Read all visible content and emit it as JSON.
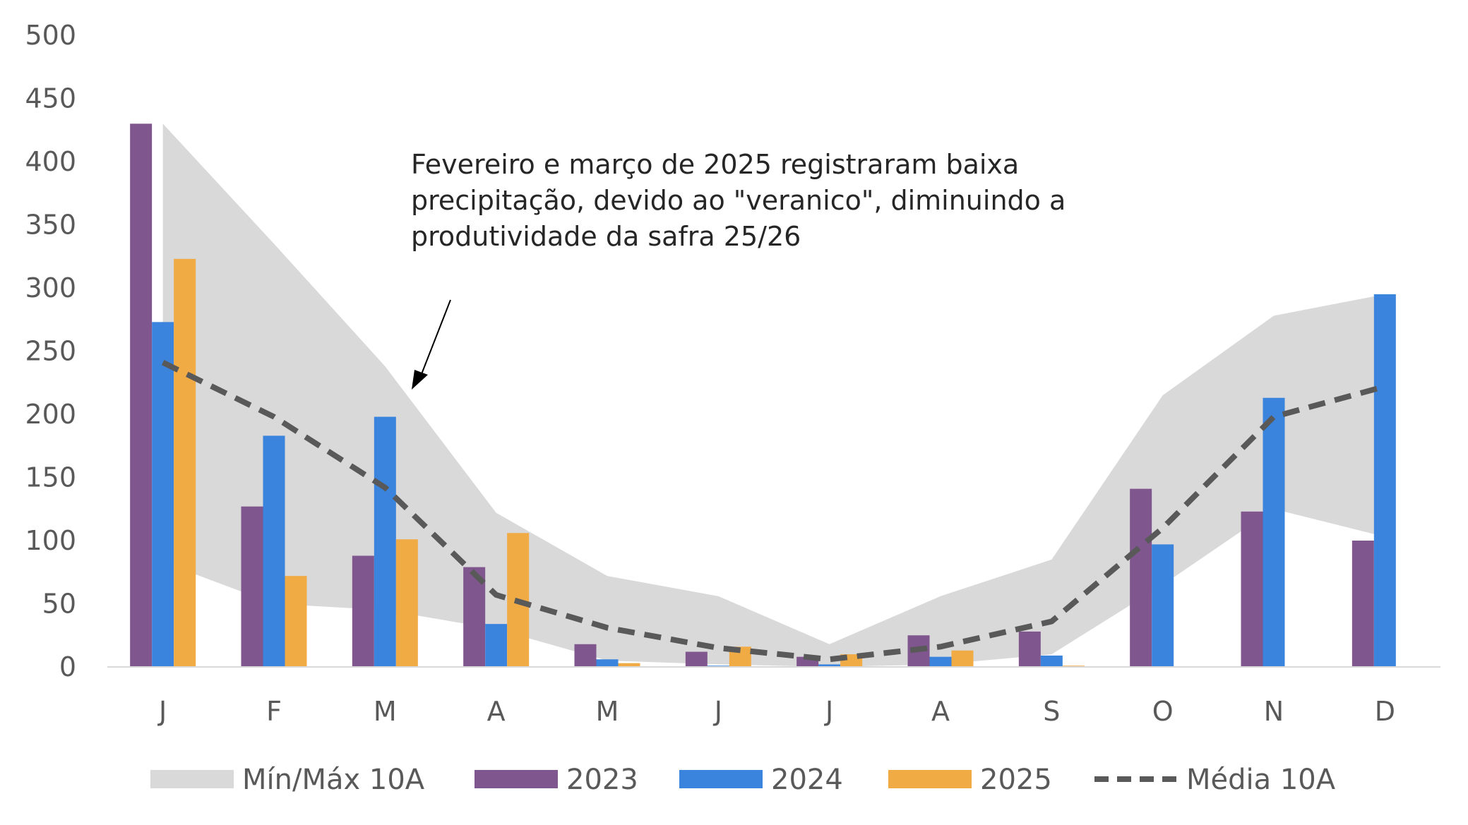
{
  "chart_data": {
    "type": "bar",
    "categories": [
      "J",
      "F",
      "M",
      "A",
      "M",
      "J",
      "J",
      "A",
      "S",
      "O",
      "N",
      "D"
    ],
    "ylim": [
      0,
      500
    ],
    "yticks": [
      0,
      50,
      100,
      150,
      200,
      250,
      300,
      350,
      400,
      450,
      500
    ],
    "grid": false,
    "legend_position": "bottom",
    "band": {
      "name": "Mín/Máx 10A",
      "color": "#d9d9d9",
      "min": [
        83,
        50,
        45,
        30,
        5,
        2,
        0,
        2,
        10,
        65,
        125,
        103
      ],
      "max": [
        430,
        335,
        238,
        122,
        72,
        56,
        18,
        56,
        85,
        215,
        278,
        295
      ]
    },
    "series": [
      {
        "name": "2023",
        "color": "#7f568d",
        "values": [
          430,
          127,
          88,
          79,
          18,
          12,
          8,
          25,
          28,
          141,
          123,
          100
        ]
      },
      {
        "name": "2024",
        "color": "#3a84dd",
        "values": [
          273,
          183,
          198,
          34,
          6,
          1,
          2,
          8,
          9,
          97,
          213,
          295
        ]
      },
      {
        "name": "2025",
        "color": "#f0ab45",
        "values": [
          323,
          72,
          101,
          106,
          3,
          16,
          10,
          13,
          1,
          null,
          null,
          null
        ]
      }
    ],
    "line": {
      "name": "Média 10A",
      "color": "#595959",
      "values": [
        241,
        198,
        142,
        57,
        31,
        15,
        6,
        16,
        36,
        110,
        198,
        222
      ]
    },
    "annotation": {
      "lines": [
        "Fevereiro e março de 2025 registraram baixa",
        "precipitação, devido ao \"veranico\", diminuindo a",
        "produtividade da safra 25/26"
      ]
    }
  }
}
